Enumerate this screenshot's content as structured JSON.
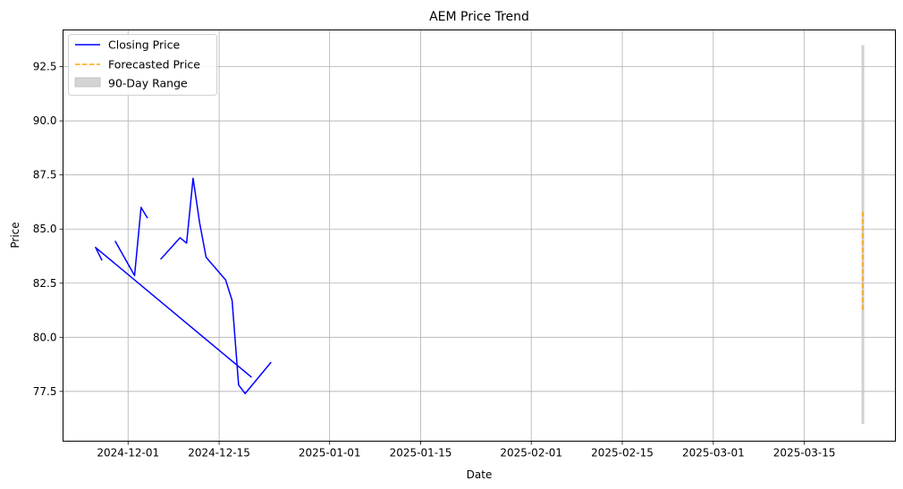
{
  "chart_data": {
    "type": "line",
    "title": "AEM Price Trend",
    "xlabel": "Date",
    "ylabel": "Price",
    "xlim": [
      "2024-11-21",
      "2025-03-29"
    ],
    "ylim": [
      75.2,
      94.2
    ],
    "x_ticks": [
      "2024-12-01",
      "2024-12-15",
      "2025-01-01",
      "2025-01-15",
      "2025-02-01",
      "2025-02-15",
      "2025-03-01",
      "2025-03-15"
    ],
    "y_ticks": [
      77.5,
      80.0,
      82.5,
      85.0,
      87.5,
      90.0,
      92.5
    ],
    "y_tick_labels": [
      "77.5",
      "80.0",
      "82.5",
      "85.0",
      "87.5",
      "90.0",
      "92.5"
    ],
    "grid": true,
    "legend_position": "top-left",
    "series": [
      {
        "name": "Closing Price",
        "style": "solid",
        "color": "#0000ff",
        "points": [
          {
            "x": "2024-11-27",
            "y": 83.55
          },
          {
            "x": "2024-11-26",
            "y": 84.15
          },
          {
            "x": "2024-12-20",
            "y": 78.15
          },
          {
            "x": null,
            "y": null
          },
          {
            "x": "2024-11-29",
            "y": 84.45
          },
          {
            "x": "2024-12-02",
            "y": 82.85
          },
          {
            "x": "2024-12-03",
            "y": 86.0
          },
          {
            "x": "2024-12-04",
            "y": 85.5
          },
          {
            "x": null,
            "y": null
          },
          {
            "x": "2024-12-06",
            "y": 83.6
          },
          {
            "x": "2024-12-09",
            "y": 84.6
          },
          {
            "x": "2024-12-10",
            "y": 84.35
          },
          {
            "x": "2024-12-11",
            "y": 87.35
          },
          {
            "x": "2024-12-12",
            "y": 85.3
          },
          {
            "x": "2024-12-13",
            "y": 83.7
          },
          {
            "x": "2024-12-16",
            "y": 82.65
          },
          {
            "x": "2024-12-17",
            "y": 81.7
          },
          {
            "x": "2024-12-18",
            "y": 77.8
          },
          {
            "x": "2024-12-19",
            "y": 77.4
          },
          {
            "x": "2024-12-23",
            "y": 78.85
          }
        ]
      },
      {
        "name": "Forecasted Price",
        "style": "dashed",
        "color": "#ffa500",
        "points": [
          {
            "x": "2025-03-24",
            "y": 85.8
          },
          {
            "x": "2025-03-24",
            "y": 81.2
          }
        ]
      }
    ],
    "range_band": {
      "name": "90-Day Range",
      "color": "#c8c8c8",
      "x": "2025-03-24",
      "low": 76.0,
      "high": 93.5
    }
  }
}
